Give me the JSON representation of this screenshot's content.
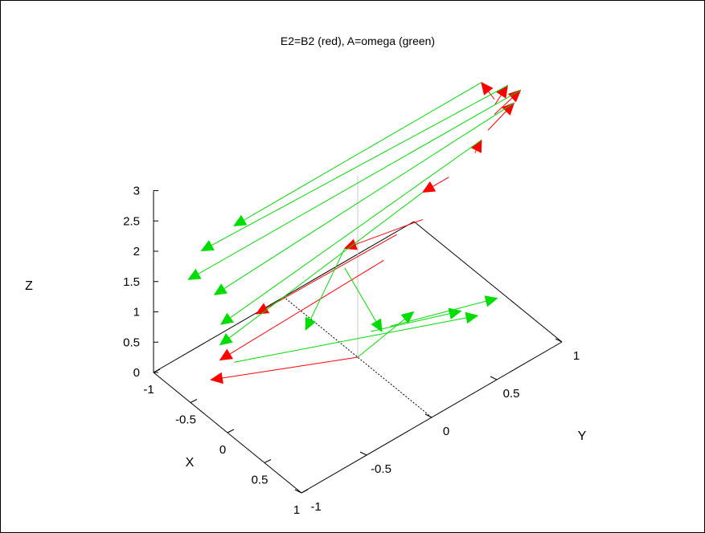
{
  "chart_data": {
    "type": "3d-vector",
    "title": "E2=B2 (red), A=omega (green)",
    "xlabel": "X",
    "ylabel": "Y",
    "zlabel": "Z",
    "xlim": [
      -1,
      1
    ],
    "ylim": [
      -1,
      1
    ],
    "zlim": [
      0,
      3
    ],
    "x_ticks": [
      "-1",
      "-0.5",
      "0",
      "0.5",
      "1"
    ],
    "y_ticks": [
      "-1",
      "-0.5",
      "0",
      "0.5",
      "1"
    ],
    "z_ticks": [
      "0",
      "0.5",
      "1",
      "1.5",
      "2",
      "2.5",
      "3"
    ],
    "colors": {
      "red": "#ff0000",
      "green": "#00dd00"
    },
    "series": [
      {
        "name": "E2=B2",
        "color": "#ff0000",
        "vectors": [
          {
            "from": [
              0,
              0.0,
              0.0
            ],
            "to": [
              -0.4,
              -0.9,
              0.35
            ]
          },
          {
            "from": [
              0,
              0.2,
              1.35
            ],
            "to": [
              -0.1,
              -1.0,
              1.1
            ]
          },
          {
            "from": [
              0,
              0.3,
              1.65
            ],
            "to": [
              -0.05,
              -0.75,
              1.6
            ]
          },
          {
            "from": [
              0,
              0.5,
              1.65
            ],
            "to": [
              0.0,
              -0.1,
              1.92
            ]
          },
          {
            "from": [
              0,
              0.7,
              2.1
            ],
            "to": [
              0.0,
              0.5,
              2.1
            ]
          },
          {
            "from": [
              0,
              0.9,
              2.25
            ],
            "to": [
              0.0,
              0.95,
              2.4
            ]
          },
          {
            "from": [
              0,
              1.0,
              2.5
            ],
            "to": [
              0.0,
              1.2,
              2.7
            ]
          },
          {
            "from": [
              0,
              1.05,
              2.7
            ],
            "to": [
              0.0,
              1.25,
              2.85
            ]
          },
          {
            "from": [
              0,
              1.05,
              2.85
            ],
            "to": [
              0.0,
              1.15,
              3.05
            ]
          },
          {
            "from": [
              0,
              1.05,
              2.95
            ],
            "to": [
              0.0,
              0.95,
              3.35
            ]
          }
        ]
      },
      {
        "name": "A=omega",
        "color": "#00dd00",
        "vectors": [
          {
            "from": [
              0,
              0.95,
              3.35
            ],
            "to": [
              0.0,
              -0.95,
              3.35
            ]
          },
          {
            "from": [
              0,
              1.15,
              3.05
            ],
            "to": [
              0.0,
              -1.2,
              3.25
            ]
          },
          {
            "from": [
              0,
              1.25,
              2.85
            ],
            "to": [
              0.0,
              -1.3,
              2.9
            ]
          },
          {
            "from": [
              0,
              1.2,
              2.7
            ],
            "to": [
              0.0,
              -1.1,
              2.4
            ]
          },
          {
            "from": [
              0,
              0.95,
              2.4
            ],
            "to": [
              0.0,
              -1.05,
              1.85
            ]
          },
          {
            "from": [
              0,
              0.5,
              2.1
            ],
            "to": [
              -0.1,
              -1.0,
              1.35
            ]
          },
          {
            "from": [
              0,
              -0.1,
              1.92
            ],
            "to": [
              0.0,
              -0.4,
              0.95
            ]
          },
          {
            "from": [
              0,
              -0.1,
              1.6
            ],
            "to": [
              0.15,
              0.1,
              0.45
            ]
          },
          {
            "from": [
              0,
              0.0,
              0.0
            ],
            "to": [
              0.05,
              0.4,
              0.3
            ]
          },
          {
            "from": [
              0,
              0.1,
              0.3
            ],
            "to": [
              0.25,
              0.65,
              0.2
            ]
          },
          {
            "from": [
              0,
              0.25,
              0.2
            ],
            "to": [
              0.3,
              0.9,
              0.15
            ]
          },
          {
            "from": [
              0,
              -0.95,
              1.1
            ],
            "to": [
              0.3,
              0.75,
              0.05
            ]
          }
        ]
      }
    ]
  }
}
